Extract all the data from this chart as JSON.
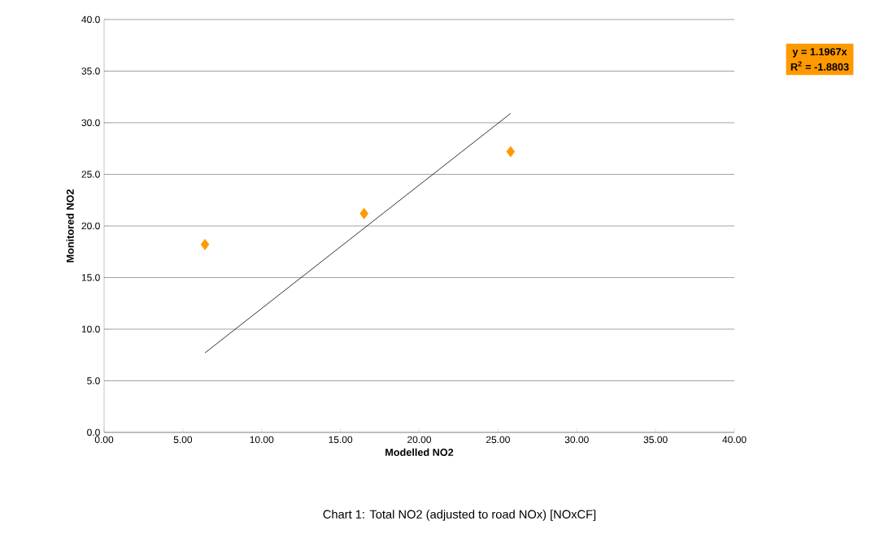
{
  "chart_data": {
    "type": "scatter",
    "title": "Chart 1: Total NO2 (adjusted to road NOx) [NOxCF]",
    "xlabel": "Modelled NO2",
    "ylabel": "Monitored NO2",
    "annotations": [
      "y = 1.1967x",
      "R$^{2}$ = -1.8803"
    ],
    "x": [
      6.4,
      16.5,
      25.8
    ],
    "series": [
      {
        "color": "#ff9900",
        "marker": "diamond",
        "values": [
          18.2,
          21.2,
          27.2
        ]
      },
      {
        "type": "line",
        "color": "#000000",
        "marker": "none",
        "x": [
          6.4,
          25.8
        ],
        "values": [
          7.7,
          30.9
        ]
      }
    ],
    "xlim": [
      0,
      40
    ],
    "ylim": [
      0,
      40
    ],
    "xticks": [
      {
        "value": 0,
        "label": "0.00"
      },
      {
        "value": 5,
        "label": "5.00"
      },
      {
        "value": 10,
        "label": "10.00"
      },
      {
        "value": 15,
        "label": "15.00"
      },
      {
        "value": 20,
        "label": "20.00"
      },
      {
        "value": 25,
        "label": "25.00"
      },
      {
        "value": 30,
        "label": "30.00"
      },
      {
        "value": 35,
        "label": "35.00"
      },
      {
        "value": 40,
        "label": "40.00"
      }
    ],
    "yticks": [
      {
        "value": 0,
        "label": "0.0"
      },
      {
        "value": 5,
        "label": "5.0"
      },
      {
        "value": 10,
        "label": "10.0"
      },
      {
        "value": 15,
        "label": "15.0"
      },
      {
        "value": 20,
        "label": "20.0"
      },
      {
        "value": 25,
        "label": "25.0"
      },
      {
        "value": 30,
        "label": "30.0"
      },
      {
        "value": 35,
        "label": "35.0"
      },
      {
        "value": 40,
        "label": "40.0"
      }
    ],
    "grid": "y"
  }
}
